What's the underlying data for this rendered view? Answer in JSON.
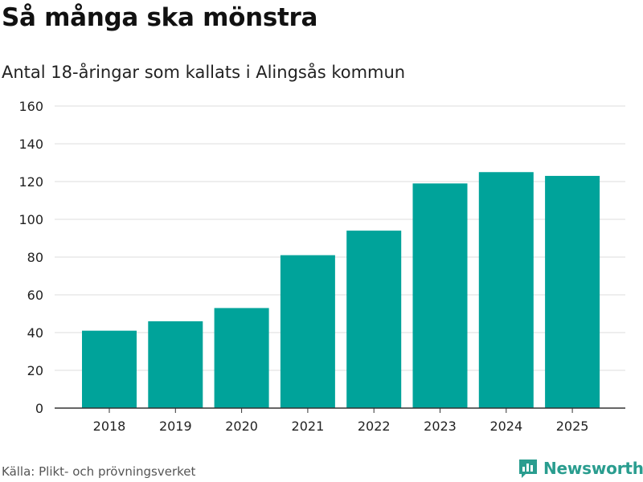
{
  "header": {
    "title": "Så många ska mönstra",
    "subtitle": "Antal 18-åringar som kallats i Alingsås kommun"
  },
  "footer": {
    "source": "Källa: Plikt- och prövningsverket",
    "brand": "Newsworthy"
  },
  "colors": {
    "bar": "#00a39a",
    "grid": "#dddddd",
    "axis": "#333333",
    "brand": "#2a9d8f"
  },
  "icons": {
    "brand_logo": "bar-chart-icon"
  },
  "chart_data": {
    "type": "bar",
    "title": "Så många ska mönstra",
    "subtitle": "Antal 18-åringar som kallats i Alingsås kommun",
    "categories": [
      "2018",
      "2019",
      "2020",
      "2021",
      "2022",
      "2023",
      "2024",
      "2025"
    ],
    "values": [
      41,
      46,
      53,
      81,
      94,
      119,
      125,
      123
    ],
    "xlabel": "",
    "ylabel": "",
    "ylim": [
      0,
      160
    ],
    "yticks": [
      0,
      20,
      40,
      60,
      80,
      100,
      120,
      140,
      160
    ],
    "grid": true,
    "legend": "none"
  }
}
